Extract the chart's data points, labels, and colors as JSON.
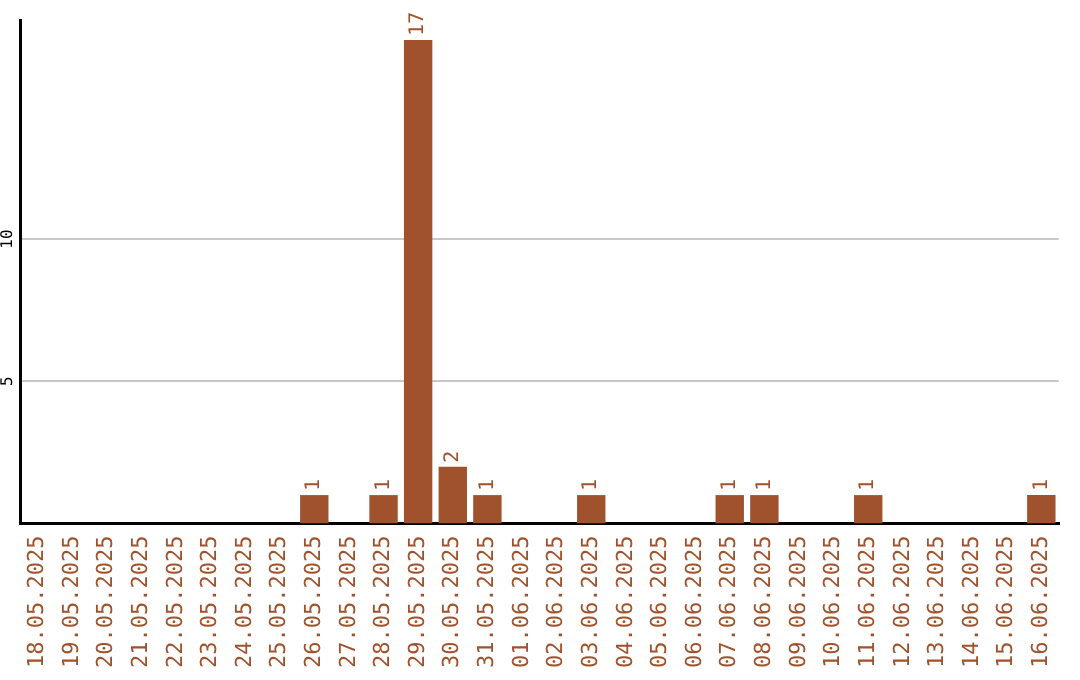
{
  "chart_data": {
    "type": "bar",
    "categories": [
      "18.05.2025",
      "19.05.2025",
      "20.05.2025",
      "21.05.2025",
      "22.05.2025",
      "23.05.2025",
      "24.05.2025",
      "25.05.2025",
      "26.05.2025",
      "27.05.2025",
      "28.05.2025",
      "29.05.2025",
      "30.05.2025",
      "31.05.2025",
      "01.06.2025",
      "02.06.2025",
      "03.06.2025",
      "04.06.2025",
      "05.06.2025",
      "06.06.2025",
      "07.06.2025",
      "08.06.2025",
      "09.06.2025",
      "10.06.2025",
      "11.06.2025",
      "12.06.2025",
      "13.06.2025",
      "14.06.2025",
      "15.06.2025",
      "16.06.2025"
    ],
    "values": [
      0,
      0,
      0,
      0,
      0,
      0,
      0,
      0,
      1,
      0,
      1,
      17,
      2,
      1,
      0,
      0,
      1,
      0,
      0,
      0,
      1,
      1,
      0,
      0,
      1,
      0,
      0,
      0,
      0,
      1
    ],
    "value_labels": [
      null,
      null,
      null,
      null,
      null,
      null,
      null,
      null,
      "1",
      null,
      "1",
      "17",
      "2",
      "1",
      null,
      null,
      "1",
      null,
      null,
      null,
      "1",
      "1",
      null,
      null,
      "1",
      null,
      null,
      null,
      null,
      "1"
    ],
    "color": "#a0522d",
    "ylim": [
      0,
      17.7
    ],
    "yticks": [
      5,
      10
    ],
    "grid": "y"
  }
}
